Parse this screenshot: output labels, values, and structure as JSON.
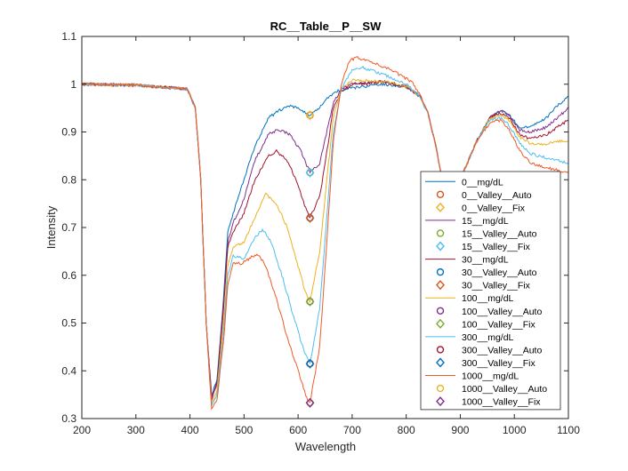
{
  "chart_data": {
    "type": "line",
    "title": "RC__Table__P__SW",
    "xlabel": "Wavelength",
    "ylabel": "Intensity",
    "xlim": [
      200,
      1100
    ],
    "ylim": [
      0.3,
      1.1
    ],
    "xticks": [
      200,
      300,
      400,
      500,
      600,
      700,
      800,
      900,
      1000,
      1100
    ],
    "yticks": [
      0.3,
      0.4,
      0.5,
      0.6,
      0.7,
      0.8,
      0.9,
      1,
      1.1
    ],
    "xtick_labels": [
      "200",
      "300",
      "400",
      "500",
      "600",
      "700",
      "800",
      "900",
      "1000",
      "1100"
    ],
    "ytick_labels": [
      "0.3",
      "0.4",
      "0.5",
      "0.6",
      "0.7",
      "0.8",
      "0.9",
      "1",
      "1.1"
    ],
    "grid": false,
    "legend_position": "right",
    "series": [
      {
        "name": "0__mg/dL",
        "color": "#0072BD",
        "points": [
          [
            200,
            1.0
          ],
          [
            300,
            0.998
          ],
          [
            395,
            0.99
          ],
          [
            410,
            0.95
          ],
          [
            420,
            0.8
          ],
          [
            430,
            0.5
          ],
          [
            440,
            0.35
          ],
          [
            450,
            0.38
          ],
          [
            462,
            0.55
          ],
          [
            470,
            0.69
          ],
          [
            480,
            0.73
          ],
          [
            500,
            0.8
          ],
          [
            520,
            0.87
          ],
          [
            545,
            0.93
          ],
          [
            580,
            0.955
          ],
          [
            600,
            0.95
          ],
          [
            614,
            0.94
          ],
          [
            622,
            0.935
          ],
          [
            635,
            0.945
          ],
          [
            650,
            0.965
          ],
          [
            670,
            0.985
          ],
          [
            690,
            0.99
          ],
          [
            720,
            0.995
          ],
          [
            760,
            1.0
          ],
          [
            800,
            0.995
          ],
          [
            825,
            0.975
          ],
          [
            840,
            0.94
          ],
          [
            855,
            0.87
          ],
          [
            868,
            0.79
          ],
          [
            880,
            0.76
          ],
          [
            900,
            0.8
          ],
          [
            930,
            0.88
          ],
          [
            955,
            0.93
          ],
          [
            975,
            0.945
          ],
          [
            990,
            0.935
          ],
          [
            1010,
            0.91
          ],
          [
            1030,
            0.91
          ],
          [
            1060,
            0.93
          ],
          [
            1080,
            0.955
          ],
          [
            1100,
            0.975
          ]
        ]
      },
      {
        "name": "15__mg/dL",
        "color": "#7E2F8E",
        "points": [
          [
            200,
            1.0
          ],
          [
            300,
            0.998
          ],
          [
            395,
            0.99
          ],
          [
            410,
            0.95
          ],
          [
            420,
            0.8
          ],
          [
            430,
            0.5
          ],
          [
            440,
            0.345
          ],
          [
            450,
            0.375
          ],
          [
            462,
            0.54
          ],
          [
            470,
            0.67
          ],
          [
            480,
            0.71
          ],
          [
            500,
            0.76
          ],
          [
            520,
            0.84
          ],
          [
            545,
            0.895
          ],
          [
            565,
            0.905
          ],
          [
            585,
            0.895
          ],
          [
            605,
            0.86
          ],
          [
            622,
            0.815
          ],
          [
            640,
            0.835
          ],
          [
            655,
            0.91
          ],
          [
            665,
            0.96
          ],
          [
            680,
            0.99
          ],
          [
            700,
            1.0
          ],
          [
            760,
            1.005
          ],
          [
            800,
            0.995
          ],
          [
            825,
            0.975
          ],
          [
            840,
            0.94
          ],
          [
            855,
            0.87
          ],
          [
            868,
            0.79
          ],
          [
            880,
            0.76
          ],
          [
            900,
            0.8
          ],
          [
            930,
            0.88
          ],
          [
            955,
            0.93
          ],
          [
            975,
            0.945
          ],
          [
            990,
            0.935
          ],
          [
            1010,
            0.905
          ],
          [
            1030,
            0.9
          ],
          [
            1060,
            0.91
          ],
          [
            1080,
            0.93
          ],
          [
            1100,
            0.95
          ]
        ]
      },
      {
        "name": "30__mg/dL",
        "color": "#A2142F",
        "points": [
          [
            200,
            1.0
          ],
          [
            300,
            0.998
          ],
          [
            395,
            0.99
          ],
          [
            410,
            0.95
          ],
          [
            420,
            0.8
          ],
          [
            430,
            0.5
          ],
          [
            440,
            0.34
          ],
          [
            450,
            0.37
          ],
          [
            462,
            0.53
          ],
          [
            470,
            0.66
          ],
          [
            480,
            0.69
          ],
          [
            500,
            0.73
          ],
          [
            520,
            0.8
          ],
          [
            545,
            0.85
          ],
          [
            560,
            0.86
          ],
          [
            580,
            0.84
          ],
          [
            600,
            0.79
          ],
          [
            612,
            0.745
          ],
          [
            622,
            0.72
          ],
          [
            640,
            0.765
          ],
          [
            655,
            0.87
          ],
          [
            665,
            0.95
          ],
          [
            680,
            0.985
          ],
          [
            700,
            1.0
          ],
          [
            760,
            1.005
          ],
          [
            800,
            0.995
          ],
          [
            825,
            0.975
          ],
          [
            840,
            0.94
          ],
          [
            855,
            0.87
          ],
          [
            868,
            0.79
          ],
          [
            880,
            0.76
          ],
          [
            900,
            0.8
          ],
          [
            930,
            0.88
          ],
          [
            955,
            0.93
          ],
          [
            975,
            0.94
          ],
          [
            990,
            0.93
          ],
          [
            1010,
            0.895
          ],
          [
            1030,
            0.885
          ],
          [
            1060,
            0.895
          ],
          [
            1080,
            0.91
          ],
          [
            1100,
            0.925
          ]
        ]
      },
      {
        "name": "100__mg/dL",
        "color": "#EDB120",
        "points": [
          [
            200,
            1.0
          ],
          [
            300,
            0.998
          ],
          [
            395,
            0.99
          ],
          [
            410,
            0.95
          ],
          [
            420,
            0.8
          ],
          [
            430,
            0.5
          ],
          [
            440,
            0.33
          ],
          [
            450,
            0.36
          ],
          [
            462,
            0.5
          ],
          [
            470,
            0.62
          ],
          [
            480,
            0.66
          ],
          [
            500,
            0.67
          ],
          [
            520,
            0.72
          ],
          [
            540,
            0.77
          ],
          [
            560,
            0.75
          ],
          [
            580,
            0.7
          ],
          [
            600,
            0.62
          ],
          [
            612,
            0.57
          ],
          [
            622,
            0.545
          ],
          [
            640,
            0.65
          ],
          [
            655,
            0.82
          ],
          [
            665,
            0.93
          ],
          [
            680,
            0.99
          ],
          [
            700,
            1.01
          ],
          [
            760,
            1.005
          ],
          [
            800,
            0.995
          ],
          [
            825,
            0.975
          ],
          [
            840,
            0.94
          ],
          [
            855,
            0.87
          ],
          [
            868,
            0.79
          ],
          [
            880,
            0.76
          ],
          [
            900,
            0.8
          ],
          [
            930,
            0.88
          ],
          [
            955,
            0.93
          ],
          [
            975,
            0.935
          ],
          [
            990,
            0.925
          ],
          [
            1010,
            0.89
          ],
          [
            1030,
            0.875
          ],
          [
            1060,
            0.875
          ],
          [
            1080,
            0.88
          ],
          [
            1100,
            0.88
          ]
        ]
      },
      {
        "name": "300__mg/dL",
        "color": "#4DBEEE",
        "points": [
          [
            200,
            1.0
          ],
          [
            300,
            0.998
          ],
          [
            395,
            0.99
          ],
          [
            410,
            0.95
          ],
          [
            420,
            0.8
          ],
          [
            430,
            0.5
          ],
          [
            440,
            0.325
          ],
          [
            450,
            0.35
          ],
          [
            462,
            0.48
          ],
          [
            470,
            0.6
          ],
          [
            480,
            0.64
          ],
          [
            500,
            0.635
          ],
          [
            520,
            0.68
          ],
          [
            535,
            0.695
          ],
          [
            550,
            0.67
          ],
          [
            570,
            0.6
          ],
          [
            590,
            0.52
          ],
          [
            610,
            0.445
          ],
          [
            622,
            0.415
          ],
          [
            640,
            0.53
          ],
          [
            655,
            0.75
          ],
          [
            665,
            0.9
          ],
          [
            680,
            0.99
          ],
          [
            700,
            1.03
          ],
          [
            720,
            1.035
          ],
          [
            760,
            1.02
          ],
          [
            800,
            1.0
          ],
          [
            825,
            0.975
          ],
          [
            840,
            0.94
          ],
          [
            855,
            0.87
          ],
          [
            868,
            0.79
          ],
          [
            880,
            0.76
          ],
          [
            900,
            0.8
          ],
          [
            930,
            0.88
          ],
          [
            955,
            0.925
          ],
          [
            975,
            0.93
          ],
          [
            990,
            0.915
          ],
          [
            1010,
            0.875
          ],
          [
            1030,
            0.855
          ],
          [
            1060,
            0.845
          ],
          [
            1080,
            0.84
          ],
          [
            1100,
            0.835
          ]
        ]
      },
      {
        "name": "1000__mg/dL",
        "color": "#F05A28",
        "points": [
          [
            200,
            1.0
          ],
          [
            300,
            0.998
          ],
          [
            395,
            0.99
          ],
          [
            410,
            0.95
          ],
          [
            420,
            0.8
          ],
          [
            430,
            0.5
          ],
          [
            440,
            0.32
          ],
          [
            450,
            0.34
          ],
          [
            462,
            0.46
          ],
          [
            470,
            0.58
          ],
          [
            480,
            0.625
          ],
          [
            495,
            0.625
          ],
          [
            510,
            0.635
          ],
          [
            525,
            0.645
          ],
          [
            540,
            0.62
          ],
          [
            560,
            0.55
          ],
          [
            580,
            0.47
          ],
          [
            600,
            0.4
          ],
          [
            615,
            0.345
          ],
          [
            622,
            0.333
          ],
          [
            640,
            0.45
          ],
          [
            655,
            0.7
          ],
          [
            665,
            0.88
          ],
          [
            680,
            1.0
          ],
          [
            695,
            1.05
          ],
          [
            710,
            1.055
          ],
          [
            740,
            1.045
          ],
          [
            780,
            1.025
          ],
          [
            810,
            1.005
          ],
          [
            825,
            0.98
          ],
          [
            840,
            0.94
          ],
          [
            855,
            0.87
          ],
          [
            868,
            0.79
          ],
          [
            880,
            0.76
          ],
          [
            900,
            0.8
          ],
          [
            930,
            0.88
          ],
          [
            955,
            0.92
          ],
          [
            975,
            0.925
          ],
          [
            990,
            0.905
          ],
          [
            1010,
            0.86
          ],
          [
            1030,
            0.835
          ],
          [
            1060,
            0.825
          ],
          [
            1080,
            0.82
          ],
          [
            1100,
            0.815
          ]
        ]
      }
    ],
    "markers": [
      {
        "name": "0__Valley__Auto",
        "shape": "circle",
        "color": "#D95319",
        "x": 622,
        "y": 0.935
      },
      {
        "name": "0__Valley__Fix",
        "shape": "diamond",
        "color": "#EDB120",
        "x": 622,
        "y": 0.935
      },
      {
        "name": "15__Valley__Auto",
        "shape": "circle",
        "color": "#77AC30",
        "x": 622,
        "y": 0.815
      },
      {
        "name": "15__Valley__Fix",
        "shape": "diamond",
        "color": "#4DBEEE",
        "x": 622,
        "y": 0.815
      },
      {
        "name": "30__Valley__Auto",
        "shape": "circle",
        "color": "#0072BD",
        "x": 622,
        "y": 0.72
      },
      {
        "name": "30__Valley__Fix",
        "shape": "diamond",
        "color": "#D95319",
        "x": 622,
        "y": 0.72
      },
      {
        "name": "100__Valley__Auto",
        "shape": "circle",
        "color": "#7E2F8E",
        "x": 622,
        "y": 0.545
      },
      {
        "name": "100__Valley__Fix",
        "shape": "diamond",
        "color": "#77AC30",
        "x": 622,
        "y": 0.545
      },
      {
        "name": "300__Valley__Auto",
        "shape": "circle",
        "color": "#A2142F",
        "x": 622,
        "y": 0.415
      },
      {
        "name": "300__Valley__Fix",
        "shape": "diamond",
        "color": "#0072BD",
        "x": 622,
        "y": 0.415
      },
      {
        "name": "1000__Valley__Auto",
        "shape": "circle",
        "color": "#EDB120",
        "x": 622,
        "y": 0.333
      },
      {
        "name": "1000__Valley__Fix",
        "shape": "diamond",
        "color": "#7E2F8E",
        "x": 622,
        "y": 0.333
      }
    ],
    "legend": [
      {
        "label": "0__mg/dL",
        "kind": "line",
        "color": "#0072BD"
      },
      {
        "label": "0__Valley__Auto",
        "kind": "circle",
        "color": "#D95319"
      },
      {
        "label": "0__Valley__Fix",
        "kind": "diamond",
        "color": "#EDB120"
      },
      {
        "label": "15__mg/dL",
        "kind": "line",
        "color": "#7E2F8E"
      },
      {
        "label": "15__Valley__Auto",
        "kind": "circle",
        "color": "#77AC30"
      },
      {
        "label": "15__Valley__Fix",
        "kind": "diamond",
        "color": "#4DBEEE"
      },
      {
        "label": "30__mg/dL",
        "kind": "line",
        "color": "#A2142F"
      },
      {
        "label": "30__Valley__Auto",
        "kind": "circle",
        "color": "#0072BD"
      },
      {
        "label": "30__Valley__Fix",
        "kind": "diamond",
        "color": "#D95319"
      },
      {
        "label": "100__mg/dL",
        "kind": "line",
        "color": "#EDB120"
      },
      {
        "label": "100__Valley__Auto",
        "kind": "circle",
        "color": "#7E2F8E"
      },
      {
        "label": "100__Valley__Fix",
        "kind": "diamond",
        "color": "#77AC30"
      },
      {
        "label": "300__mg/dL",
        "kind": "line",
        "color": "#4DBEEE"
      },
      {
        "label": "300__Valley__Auto",
        "kind": "circle",
        "color": "#A2142F"
      },
      {
        "label": "300__Valley__Fix",
        "kind": "diamond",
        "color": "#0072BD"
      },
      {
        "label": "1000__mg/dL",
        "kind": "line",
        "color": "#F05A28"
      },
      {
        "label": "1000__Valley__Auto",
        "kind": "circle",
        "color": "#EDB120"
      },
      {
        "label": "1000__Valley__Fix",
        "kind": "diamond",
        "color": "#7E2F8E"
      }
    ]
  }
}
